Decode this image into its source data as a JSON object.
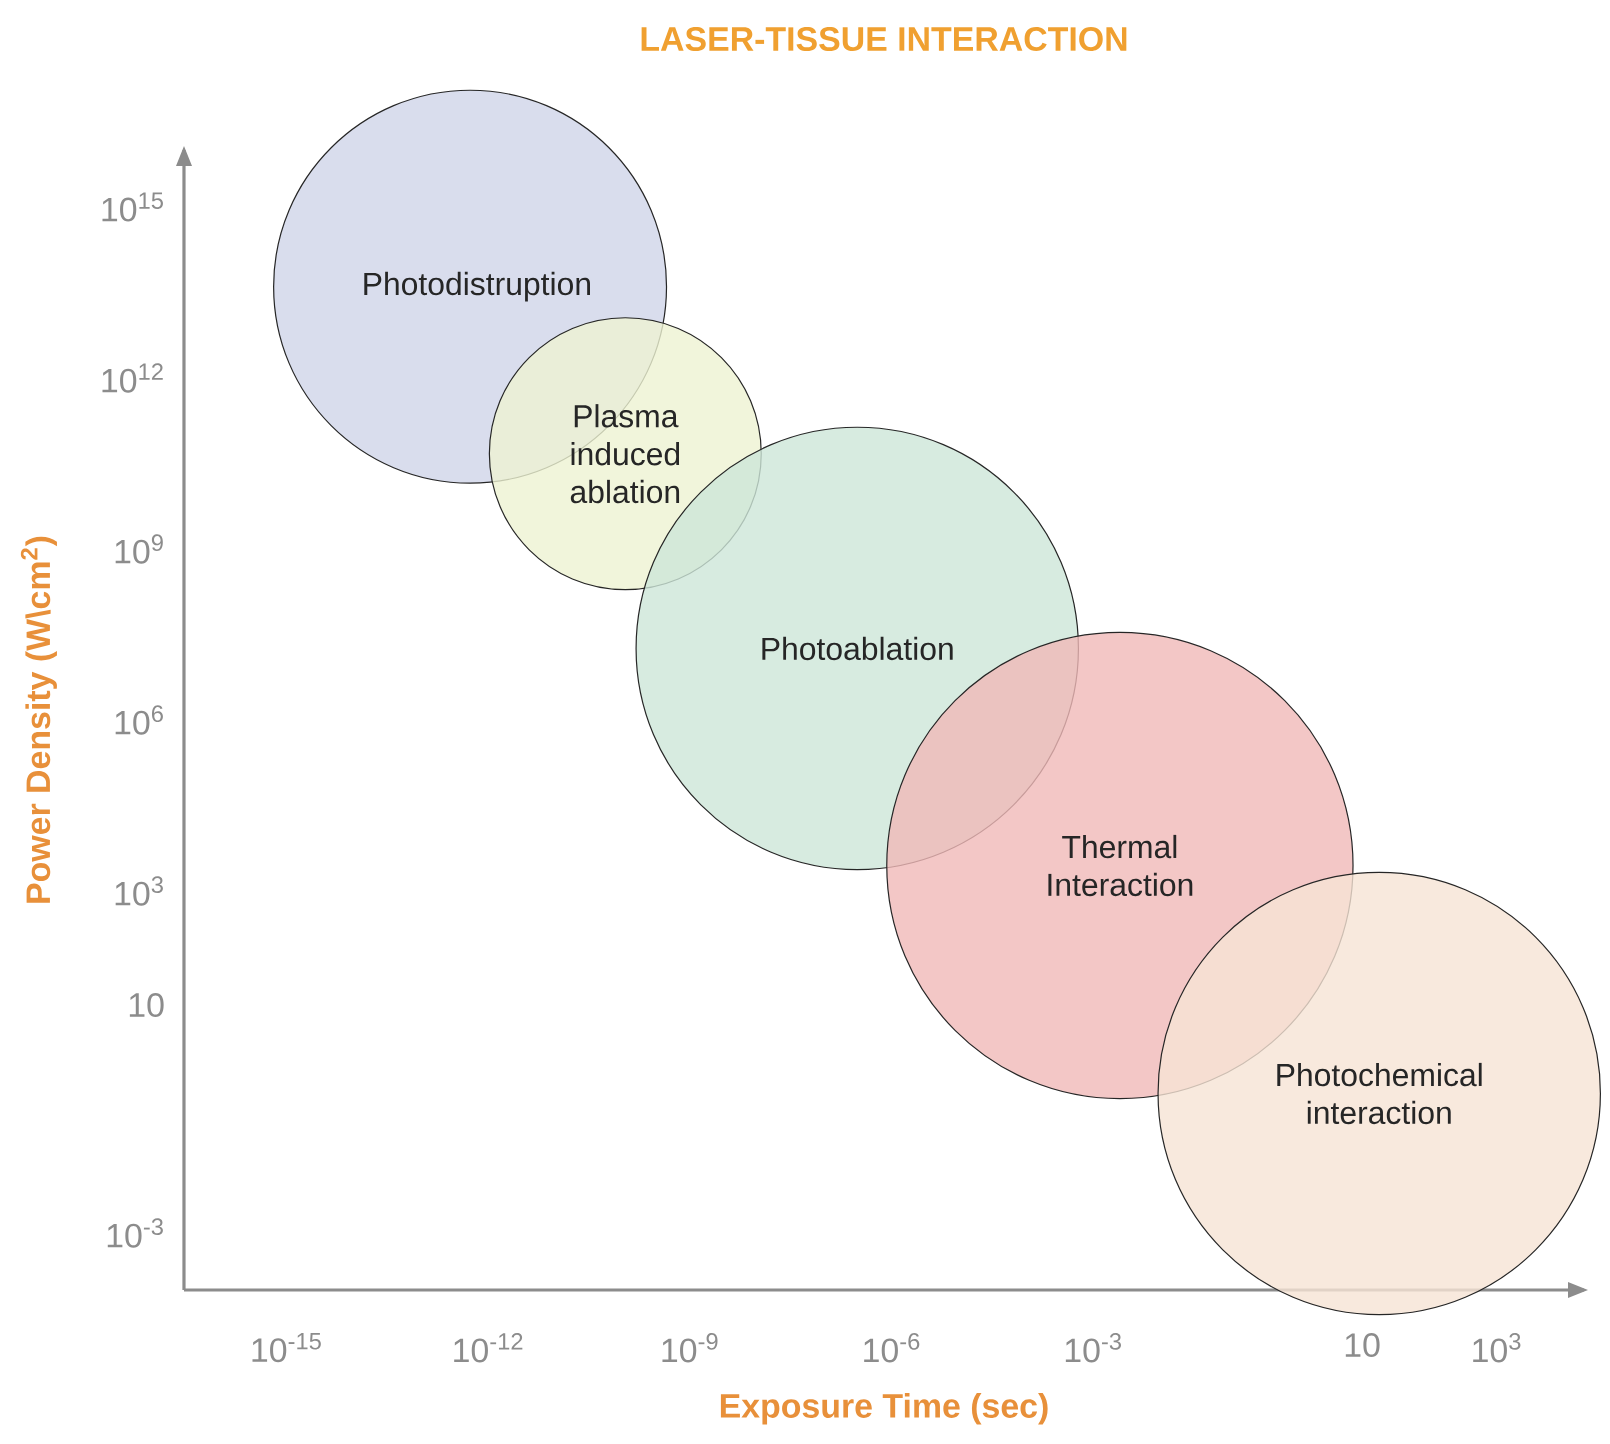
{
  "chart_data": {
    "type": "bubble",
    "title": "LASER-TISSUE INTERACTION",
    "xlabel": "Exposure Time (sec)",
    "ylabel": "Power Density (W\\cm$^{2}$)",
    "log": "xy",
    "xlim": [
      3e-17,
      20000.0
    ],
    "ylim": [
      0.0001,
      1e+16
    ],
    "xticks": [
      {
        "value": 1e-15,
        "label": "10$^{-15}$"
      },
      {
        "value": 1e-12,
        "label": "10$^{-12}$"
      },
      {
        "value": 1e-09,
        "label": "10$^{-9}$"
      },
      {
        "value": 1e-06,
        "label": "10$^{-6}$"
      },
      {
        "value": 0.001,
        "label": "10$^{-3}$"
      },
      10,
      {
        "value": 1000.0,
        "label": "10$^{3}$"
      }
    ],
    "yticks": [
      {
        "value": 0.001,
        "label": "10$^{-3}$"
      },
      10,
      {
        "value": 1000.0,
        "label": "10$^{3}$"
      },
      {
        "value": 1000000.0,
        "label": "10$^{6}$"
      },
      {
        "value": 1000000000.0,
        "label": "10$^{9}$"
      },
      {
        "value": 1000000000000.0,
        "label": "10$^{12}$"
      },
      {
        "value": 1000000000000000.0,
        "label": "10$^{15}$"
      }
    ],
    "series": [
      {
        "name": "Photodistruption",
        "color": "#d0d4e8",
        "x": [
          5.4e-13
        ],
        "values": [
          40000000000000.0
        ],
        "sizes": [
          0.71
        ]
      },
      {
        "name": "Plasma induced ablation",
        "color": "#eef2d2",
        "x": [
          1.1e-10
        ],
        "values": [
          47000000000.0
        ],
        "sizes": [
          0.34
        ]
      },
      {
        "name": "Photoablation",
        "color": "#cde6d8",
        "x": [
          3.1e-07
        ],
        "values": [
          18000000.0
        ],
        "sizes": [
          0.9
        ]
      },
      {
        "name": "Thermal Interaction",
        "color": "#f0b9b8",
        "x": [
          0.0025
        ],
        "values": [
          2800.0
        ],
        "sizes": [
          1
        ]
      },
      {
        "name": "Photochemical interaction",
        "color": "#f6e4d5",
        "x": [
          18
        ],
        "values": [
          0.28
        ],
        "sizes": [
          0.9
        ]
      }
    ]
  }
}
